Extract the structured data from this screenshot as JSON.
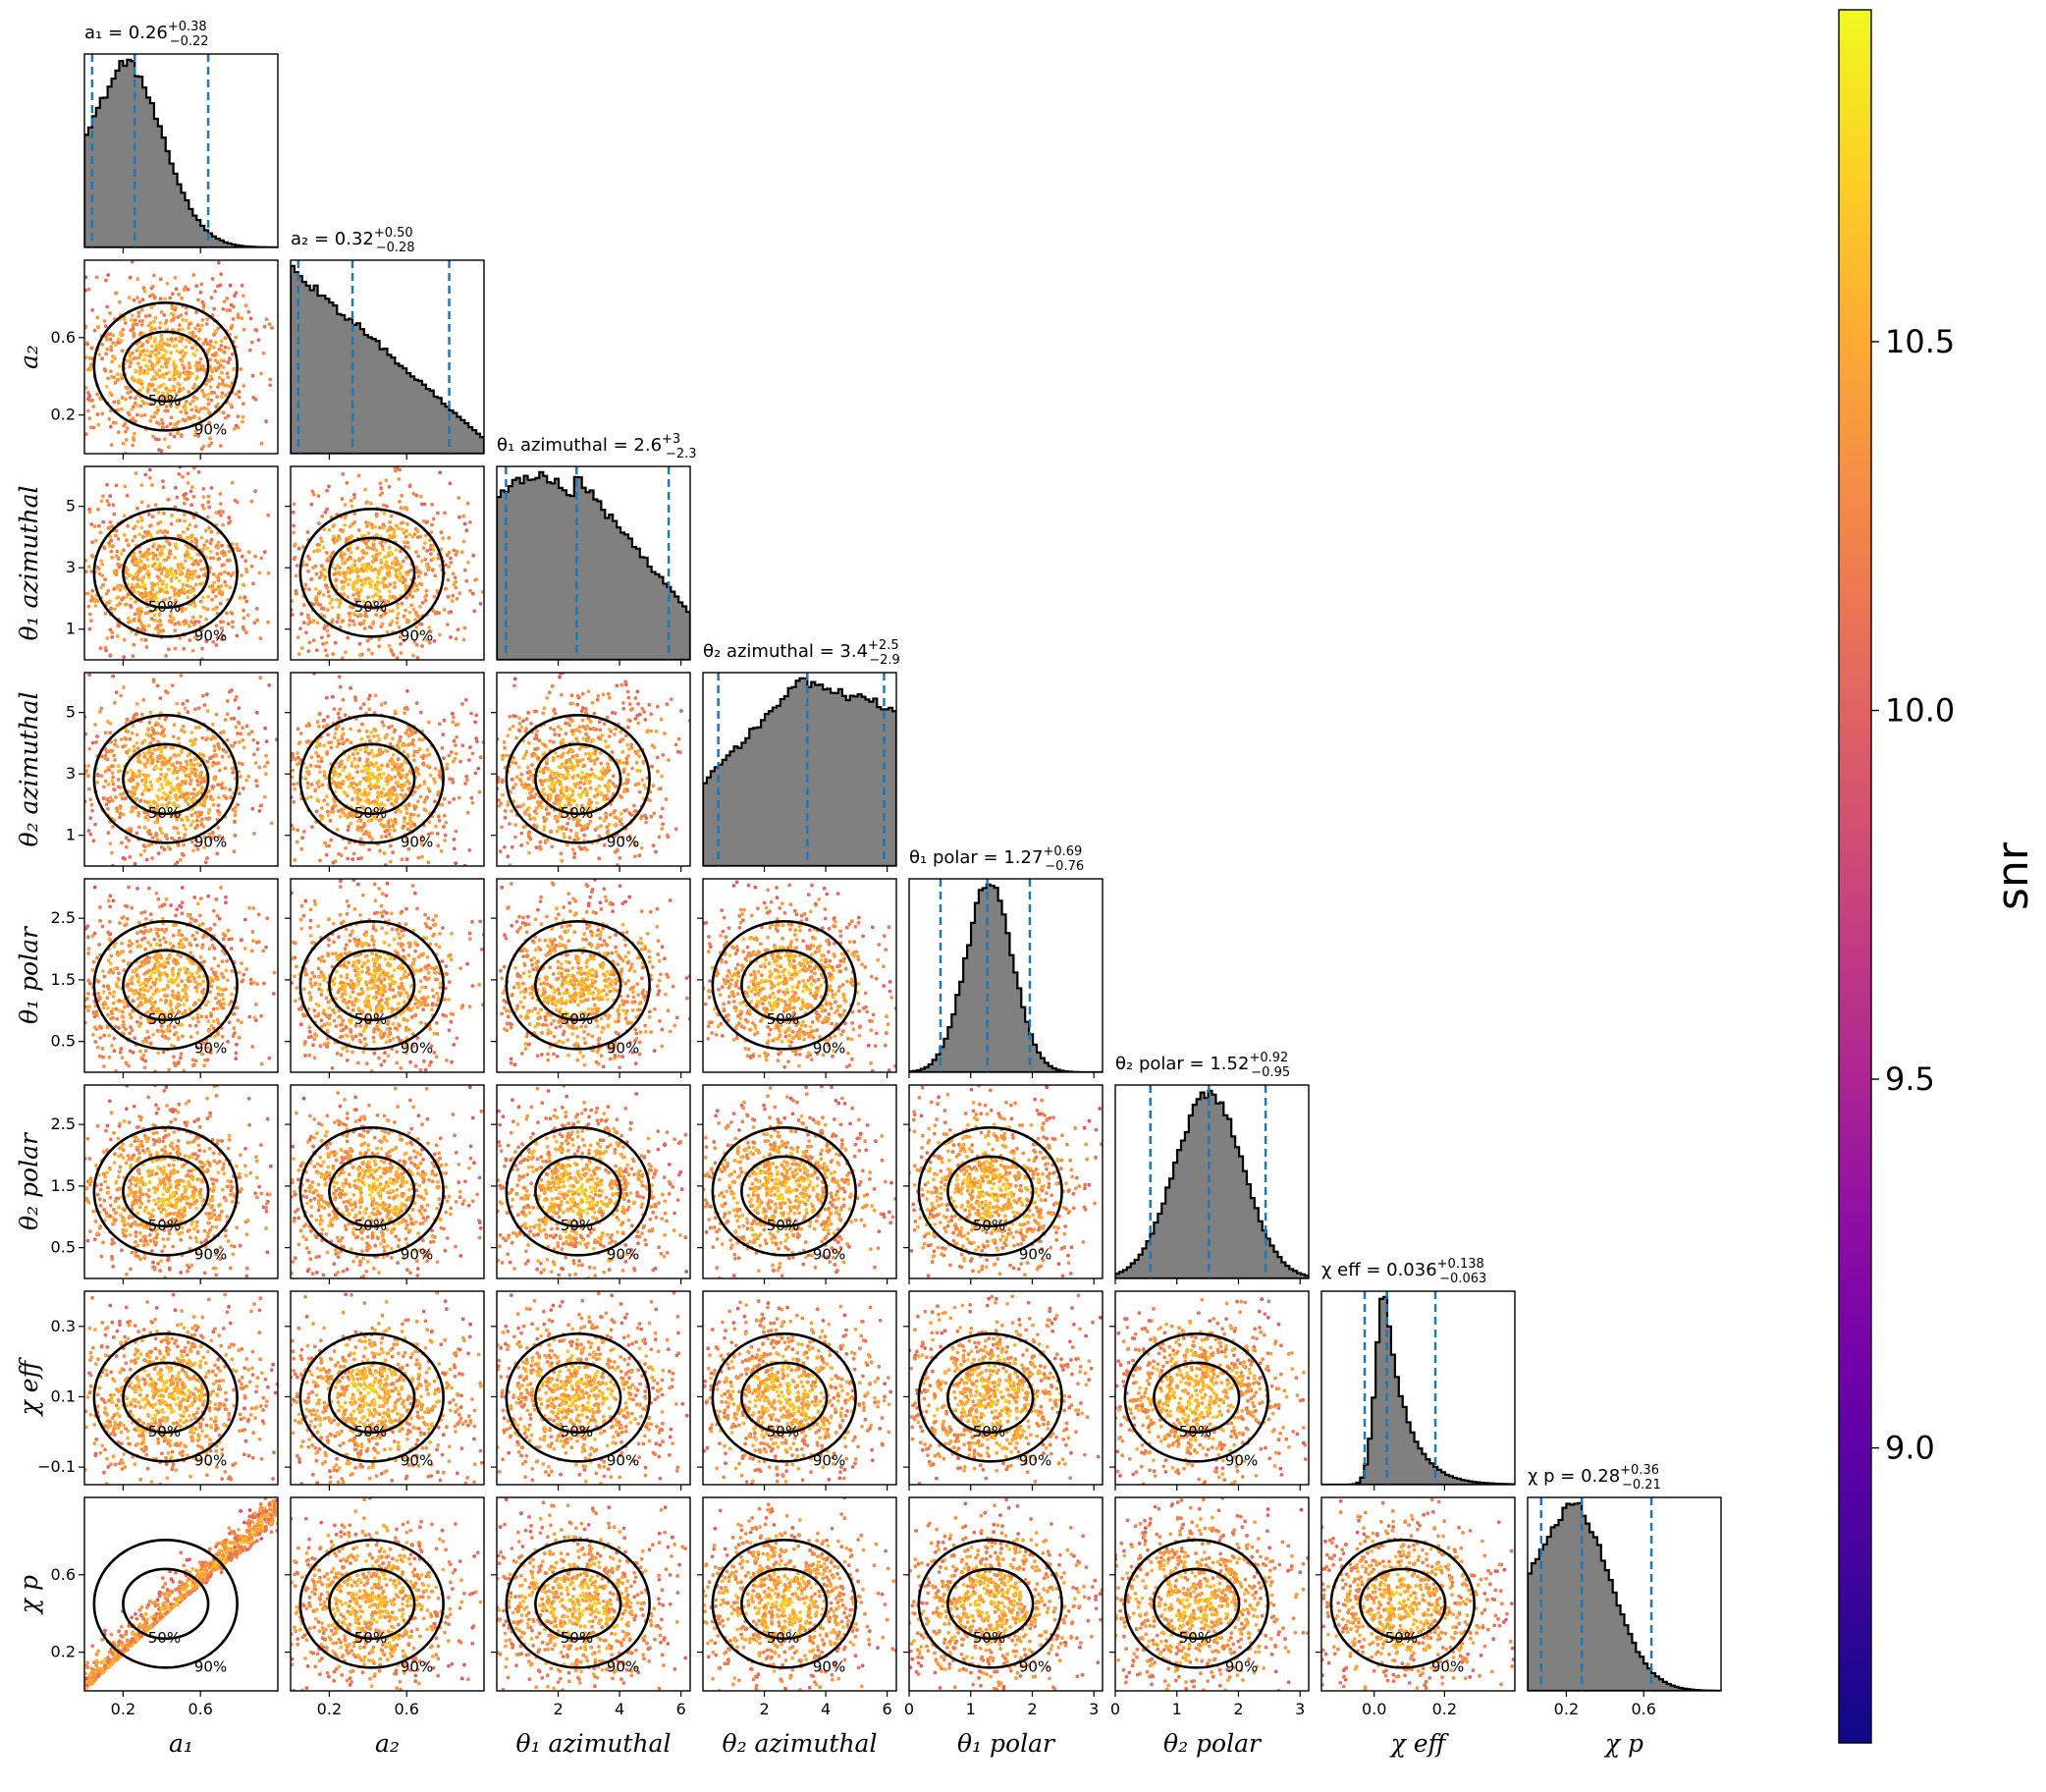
{
  "chart_data": {
    "type": "scatter",
    "description_kind": "corner",
    "grid": false,
    "params": [
      {
        "key": "a1",
        "label": "a₁",
        "xticks": [
          "0.2",
          "0.6"
        ],
        "xtick_values": [
          0.2,
          0.6
        ],
        "range": [
          0.0,
          1.0
        ],
        "yticks": [],
        "ytick_values": [],
        "hist": {
          "median": 0.26,
          "lo": 0.04,
          "hi": 0.64,
          "shape": "skew-right",
          "peak": 0.2
        },
        "title": {
          "label": "a₁",
          "value": "0.26",
          "plus": "+0.38",
          "minus": "−0.22"
        }
      },
      {
        "key": "a2",
        "label": "a₂",
        "xticks": [
          "0.2",
          "0.6"
        ],
        "xtick_values": [
          0.2,
          0.6
        ],
        "range": [
          0.0,
          1.0
        ],
        "yticks": [
          "0.6",
          "0.2"
        ],
        "ytick_values": [
          0.6,
          0.2
        ],
        "hist": {
          "median": 0.32,
          "lo": 0.04,
          "hi": 0.82,
          "shape": "declining",
          "peak": 0.05
        },
        "title": {
          "label": "a₂",
          "value": "0.32",
          "plus": "+0.50",
          "minus": "−0.28"
        }
      },
      {
        "key": "t1az",
        "label": "θ₁ azimuthal",
        "xticks": [
          "2",
          "4",
          "6"
        ],
        "xtick_values": [
          2,
          4,
          6
        ],
        "range": [
          0.0,
          6.3
        ],
        "yticks": [
          "5",
          "3",
          "1"
        ],
        "ytick_values": [
          5,
          3,
          1
        ],
        "hist": {
          "median": 2.6,
          "lo": 0.3,
          "hi": 5.6,
          "shape": "declining-flat",
          "peak": 2.5
        },
        "title": {
          "label": "θ₁ azimuthal",
          "value": "2.6",
          "plus": "+3",
          "minus": "−2.3"
        }
      },
      {
        "key": "t2az",
        "label": "θ₂ azimuthal",
        "xticks": [
          "2",
          "4",
          "6"
        ],
        "xtick_values": [
          2,
          4,
          6
        ],
        "range": [
          0.0,
          6.3
        ],
        "yticks": [
          "5",
          "3",
          "1"
        ],
        "ytick_values": [
          5,
          3,
          1
        ],
        "hist": {
          "median": 3.4,
          "lo": 0.5,
          "hi": 5.9,
          "shape": "rising-flat",
          "peak": 3.5
        },
        "title": {
          "label": "θ₂ azimuthal",
          "value": "3.4",
          "plus": "+2.5",
          "minus": "−2.9"
        }
      },
      {
        "key": "t1p",
        "label": "θ₁ polar",
        "xticks": [
          "0",
          "1",
          "2",
          "3"
        ],
        "xtick_values": [
          0,
          1,
          2,
          3
        ],
        "range": [
          0.0,
          3.14
        ],
        "yticks": [
          "2.5",
          "1.5",
          "0.5"
        ],
        "ytick_values": [
          2.5,
          1.5,
          0.5
        ],
        "hist": {
          "median": 1.27,
          "lo": 0.51,
          "hi": 1.96,
          "shape": "gauss",
          "peak": 1.3,
          "sigma": 0.38
        },
        "title": {
          "label": "θ₁ polar",
          "value": "1.27",
          "plus": "+0.69",
          "minus": "−0.76"
        }
      },
      {
        "key": "t2p",
        "label": "θ₂ polar",
        "xticks": [
          "0",
          "1",
          "2",
          "3"
        ],
        "xtick_values": [
          0,
          1,
          2,
          3
        ],
        "range": [
          0.0,
          3.14
        ],
        "yticks": [
          "2.5",
          "1.5",
          "0.5"
        ],
        "ytick_values": [
          2.5,
          1.5,
          0.5
        ],
        "hist": {
          "median": 1.52,
          "lo": 0.57,
          "hi": 2.44,
          "shape": "gauss",
          "peak": 1.52,
          "sigma": 0.55
        },
        "title": {
          "label": "θ₂ polar",
          "value": "1.52",
          "plus": "+0.92",
          "minus": "−0.95"
        }
      },
      {
        "key": "chieff",
        "label": "χ eff",
        "xticks": [
          "0.0",
          "0.2"
        ],
        "xtick_values": [
          0.0,
          0.2
        ],
        "range": [
          -0.15,
          0.4
        ],
        "yticks": [
          "0.3",
          "0.1",
          "−0.1"
        ],
        "ytick_values": [
          0.3,
          0.1,
          -0.1
        ],
        "hist": {
          "median": 0.036,
          "lo": -0.027,
          "hi": 0.174,
          "shape": "peaked-skew",
          "peak": 0.03
        },
        "title": {
          "label": "χ eff",
          "value": "0.036",
          "plus": "+0.138",
          "minus": "−0.063"
        }
      },
      {
        "key": "chip",
        "label": "χ p",
        "xticks": [
          "0.2",
          "0.6"
        ],
        "xtick_values": [
          0.2,
          0.6
        ],
        "range": [
          0.0,
          1.0
        ],
        "yticks": [
          "0.6",
          "0.2"
        ],
        "ytick_values": [
          0.6,
          0.2
        ],
        "hist": {
          "median": 0.28,
          "lo": 0.07,
          "hi": 0.64,
          "shape": "skew-right",
          "peak": 0.22
        },
        "title": {
          "label": "χ p",
          "value": "0.28",
          "plus": "+0.36",
          "minus": "−0.21"
        }
      }
    ],
    "contour_levels": [
      "50%",
      "90%"
    ],
    "median_line_color": "#1f77b4",
    "hist_fill_color": "#808080",
    "contour_color": "#000000",
    "colorbar": {
      "label": "snr",
      "colormap": "plasma",
      "range": [
        8.6,
        10.95
      ],
      "ticks": [
        "10.5",
        "10.0",
        "9.5",
        "9.0"
      ],
      "tick_values": [
        10.5,
        10.0,
        9.5,
        9.0
      ]
    }
  }
}
